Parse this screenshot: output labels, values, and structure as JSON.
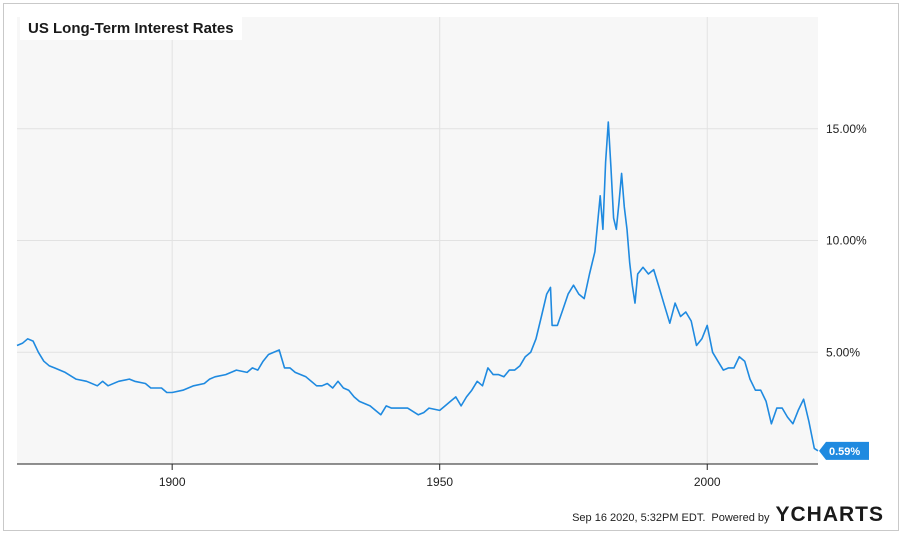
{
  "chart_data": {
    "type": "line",
    "title": "US Long-Term Interest Rates",
    "x_ticks": [
      "1900",
      "1950",
      "2000"
    ],
    "y_ticks": [
      "5.00%",
      "10.00%",
      "15.00%"
    ],
    "xlim": [
      1871,
      2020.7
    ],
    "ylim": [
      0,
      20
    ],
    "grid": true,
    "last_value_label": "0.59%",
    "series": [
      {
        "color": "#1f8ae0",
        "x": [
          1871,
          1872,
          1873,
          1874,
          1875,
          1876,
          1877,
          1878,
          1880,
          1882,
          1884,
          1886,
          1887,
          1888,
          1890,
          1892,
          1893,
          1895,
          1896,
          1898,
          1899,
          1900,
          1902,
          1904,
          1906,
          1907,
          1908,
          1910,
          1912,
          1914,
          1915,
          1916,
          1917,
          1918,
          1919,
          1920,
          1921,
          1922,
          1923,
          1925,
          1927,
          1928,
          1929,
          1930,
          1931,
          1932,
          1933,
          1934,
          1935,
          1937,
          1938,
          1939,
          1940,
          1941,
          1942,
          1944,
          1946,
          1947,
          1948,
          1950,
          1951,
          1952,
          1953,
          1954,
          1955,
          1956,
          1957,
          1958,
          1959,
          1960,
          1961,
          1962,
          1963,
          1964,
          1965,
          1966,
          1967,
          1968,
          1969,
          1970,
          1970.7,
          1971,
          1972,
          1973,
          1974,
          1975,
          1976,
          1977,
          1978,
          1979,
          1980,
          1980.5,
          1981,
          1981.5,
          1982,
          1982.5,
          1983,
          1983.5,
          1984,
          1984.5,
          1985,
          1985.5,
          1986,
          1986.5,
          1987,
          1988,
          1989,
          1990,
          1991,
          1992,
          1993,
          1994,
          1995,
          1996,
          1997,
          1998,
          1999,
          2000,
          2001,
          2002,
          2003,
          2004,
          2005,
          2006,
          2007,
          2008,
          2009,
          2010,
          2011,
          2012,
          2013,
          2014,
          2015,
          2016,
          2017,
          2018,
          2019,
          2020,
          2020.7
        ],
        "values": [
          5.3,
          5.4,
          5.6,
          5.5,
          5.0,
          4.6,
          4.4,
          4.3,
          4.1,
          3.8,
          3.7,
          3.5,
          3.7,
          3.5,
          3.7,
          3.8,
          3.7,
          3.6,
          3.4,
          3.4,
          3.2,
          3.2,
          3.3,
          3.5,
          3.6,
          3.8,
          3.9,
          4.0,
          4.2,
          4.1,
          4.3,
          4.2,
          4.6,
          4.9,
          5.0,
          5.1,
          4.3,
          4.3,
          4.1,
          3.9,
          3.5,
          3.5,
          3.6,
          3.4,
          3.7,
          3.4,
          3.3,
          3.0,
          2.8,
          2.6,
          2.4,
          2.2,
          2.6,
          2.5,
          2.5,
          2.5,
          2.2,
          2.3,
          2.5,
          2.4,
          2.6,
          2.8,
          3.0,
          2.6,
          3.0,
          3.3,
          3.7,
          3.5,
          4.3,
          4.0,
          4.0,
          3.9,
          4.2,
          4.2,
          4.4,
          4.8,
          5.0,
          5.6,
          6.6,
          7.6,
          7.9,
          6.2,
          6.2,
          6.9,
          7.6,
          8.0,
          7.6,
          7.4,
          8.5,
          9.5,
          12.0,
          10.5,
          13.5,
          15.3,
          13.3,
          11.0,
          10.5,
          11.7,
          13.0,
          11.5,
          10.5,
          9.0,
          8.0,
          7.2,
          8.5,
          8.8,
          8.5,
          8.7,
          7.9,
          7.1,
          6.3,
          7.2,
          6.6,
          6.8,
          6.4,
          5.3,
          5.6,
          6.2,
          5.0,
          4.6,
          4.2,
          4.3,
          4.3,
          4.8,
          4.6,
          3.8,
          3.3,
          3.3,
          2.8,
          1.8,
          2.5,
          2.5,
          2.1,
          1.8,
          2.4,
          2.9,
          1.9,
          0.7,
          0.59
        ]
      }
    ]
  },
  "footer": {
    "timestamp": "Sep 16 2020, 5:32PM EDT.",
    "powered_by": "Powered by",
    "brand": "YCHARTS"
  }
}
